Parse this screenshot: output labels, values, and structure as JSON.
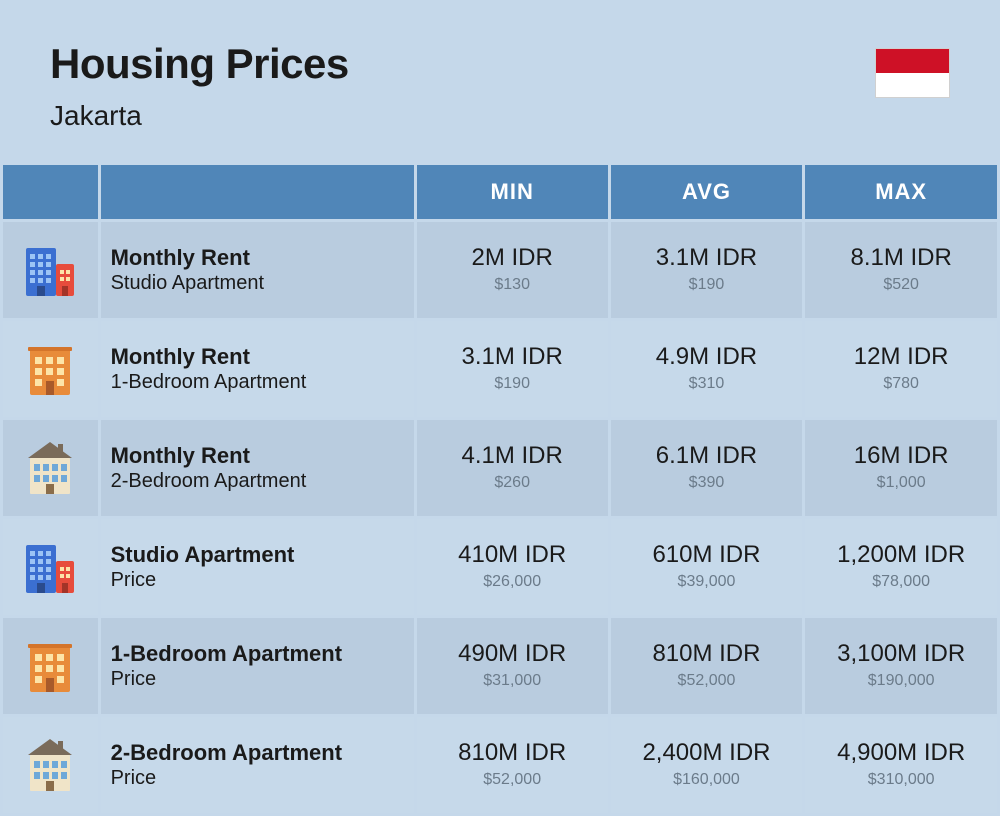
{
  "header": {
    "title": "Housing Prices",
    "subtitle": "Jakarta"
  },
  "flag": {
    "top_color": "#ce1126",
    "bottom_color": "#ffffff"
  },
  "columns": {
    "min": "MIN",
    "avg": "AVG",
    "max": "MAX"
  },
  "styling": {
    "header_bg": "#5086b8",
    "header_text": "#ffffff",
    "row_bg_odd": "#b9ccdf",
    "row_bg_even": "#c6d9ea",
    "page_bg": "#c5d8ea",
    "title_color": "#1a1a1a",
    "value_main_color": "#1a1a1a",
    "value_sub_color": "#6b7b8a",
    "title_fontsize": 42,
    "subtitle_fontsize": 28,
    "col_header_fontsize": 22,
    "row_title_fontsize": 22,
    "val_main_fontsize": 24,
    "val_sub_fontsize": 16
  },
  "rows": [
    {
      "icon": "building-blue-red",
      "title": "Monthly Rent",
      "sub": "Studio Apartment",
      "min_main": "2M IDR",
      "min_sub": "$130",
      "avg_main": "3.1M IDR",
      "avg_sub": "$190",
      "max_main": "8.1M IDR",
      "max_sub": "$520"
    },
    {
      "icon": "building-orange",
      "title": "Monthly Rent",
      "sub": "1-Bedroom Apartment",
      "min_main": "3.1M IDR",
      "min_sub": "$190",
      "avg_main": "4.9M IDR",
      "avg_sub": "$310",
      "max_main": "12M IDR",
      "max_sub": "$780"
    },
    {
      "icon": "building-house",
      "title": "Monthly Rent",
      "sub": "2-Bedroom Apartment",
      "min_main": "4.1M IDR",
      "min_sub": "$260",
      "avg_main": "6.1M IDR",
      "avg_sub": "$390",
      "max_main": "16M IDR",
      "max_sub": "$1,000"
    },
    {
      "icon": "building-blue-red",
      "title": "Studio Apartment",
      "sub": "Price",
      "min_main": "410M IDR",
      "min_sub": "$26,000",
      "avg_main": "610M IDR",
      "avg_sub": "$39,000",
      "max_main": "1,200M IDR",
      "max_sub": "$78,000"
    },
    {
      "icon": "building-orange",
      "title": "1-Bedroom Apartment",
      "sub": "Price",
      "min_main": "490M IDR",
      "min_sub": "$31,000",
      "avg_main": "810M IDR",
      "avg_sub": "$52,000",
      "max_main": "3,100M IDR",
      "max_sub": "$190,000"
    },
    {
      "icon": "building-house",
      "title": "2-Bedroom Apartment",
      "sub": "Price",
      "min_main": "810M IDR",
      "min_sub": "$52,000",
      "avg_main": "2,400M IDR",
      "avg_sub": "$160,000",
      "max_main": "4,900M IDR",
      "max_sub": "$310,000"
    }
  ]
}
